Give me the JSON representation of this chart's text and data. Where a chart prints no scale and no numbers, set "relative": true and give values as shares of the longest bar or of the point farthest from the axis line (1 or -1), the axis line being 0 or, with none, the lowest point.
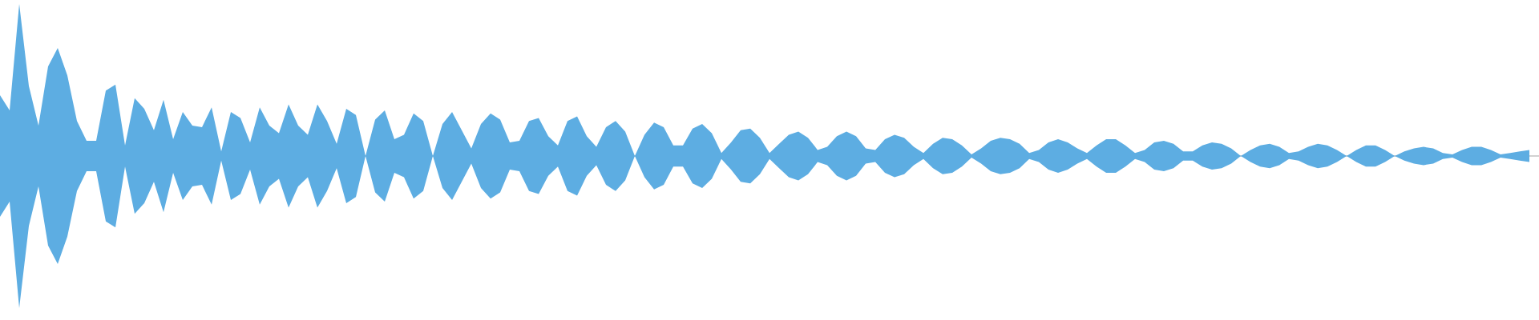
{
  "chart_data": {
    "type": "area",
    "relative": true,
    "categories": [
      null,
      null,
      null,
      null,
      null,
      null,
      null,
      null,
      null,
      null,
      null,
      null,
      null,
      null,
      null,
      null,
      null,
      null,
      null,
      null,
      null,
      null,
      null,
      null,
      null,
      null,
      null,
      null,
      null,
      null,
      null,
      null,
      null,
      null,
      null,
      null,
      null,
      null,
      null,
      null,
      null,
      null,
      null,
      null,
      null,
      null,
      null,
      null,
      null,
      null,
      null,
      null,
      null,
      null,
      null,
      null,
      null,
      null,
      null,
      null,
      null,
      null,
      null,
      null,
      null,
      null,
      null,
      null,
      null,
      null,
      null,
      null,
      null,
      null,
      null,
      null,
      null,
      null,
      null,
      null,
      null,
      null,
      null,
      null,
      null,
      null,
      null,
      null,
      null,
      null,
      null,
      null,
      null,
      null,
      null,
      null,
      null,
      null,
      null,
      null,
      null,
      null,
      null,
      null,
      null,
      null,
      null,
      null,
      null,
      null,
      null,
      null,
      null,
      null,
      null,
      null,
      null,
      null,
      null,
      null,
      null,
      null,
      null,
      null,
      null,
      null,
      null,
      null,
      null,
      null,
      null,
      null,
      null,
      null,
      null,
      null,
      null,
      null,
      null,
      null,
      null,
      null,
      null,
      null,
      null,
      null,
      null,
      null,
      null,
      null,
      null,
      null,
      null,
      null,
      null,
      null,
      null,
      null,
      null,
      null
    ],
    "series": [
      {
        "color": "#5dade2",
        "values": [
          0.4,
          0.3,
          1.0,
          0.46,
          0.2,
          0.59,
          0.71,
          0.53,
          0.23,
          0.1,
          0.1,
          0.43,
          0.47,
          0.07,
          0.38,
          0.31,
          0.17,
          0.37,
          0.11,
          0.29,
          0.2,
          0.19,
          0.32,
          0.03,
          0.29,
          0.25,
          0.09,
          0.32,
          0.2,
          0.15,
          0.34,
          0.2,
          0.14,
          0.34,
          0.23,
          0.08,
          0.31,
          0.27,
          0.0,
          0.24,
          0.3,
          0.11,
          0.14,
          0.28,
          0.23,
          0.0,
          0.21,
          0.29,
          0.17,
          0.05,
          0.21,
          0.28,
          0.24,
          0.09,
          0.1,
          0.23,
          0.25,
          0.13,
          0.07,
          0.23,
          0.26,
          0.13,
          0.06,
          0.19,
          0.23,
          0.16,
          0.0,
          0.14,
          0.22,
          0.19,
          0.07,
          0.07,
          0.18,
          0.21,
          0.15,
          0.02,
          0.09,
          0.17,
          0.18,
          0.12,
          0.02,
          0.08,
          0.14,
          0.16,
          0.12,
          0.04,
          0.06,
          0.13,
          0.16,
          0.13,
          0.05,
          0.04,
          0.11,
          0.14,
          0.12,
          0.06,
          0.02,
          0.08,
          0.12,
          0.11,
          0.07,
          0.01,
          0.05,
          0.1,
          0.12,
          0.11,
          0.08,
          0.02,
          0.04,
          0.09,
          0.11,
          0.09,
          0.05,
          0.02,
          0.07,
          0.11,
          0.11,
          0.07,
          0.02,
          0.04,
          0.09,
          0.1,
          0.08,
          0.03,
          0.03,
          0.07,
          0.09,
          0.08,
          0.05,
          0.0,
          0.04,
          0.07,
          0.08,
          0.06,
          0.02,
          0.03,
          0.06,
          0.08,
          0.07,
          0.04,
          0.0,
          0.04,
          0.07,
          0.07,
          0.04,
          0.0,
          0.03,
          0.05,
          0.06,
          0.05,
          0.02,
          0.01,
          0.04,
          0.06,
          0.06,
          0.04,
          0.01,
          0.02,
          0.03,
          0.04
        ]
      },
      {
        "color": "#5dade2",
        "values": [
          -0.4,
          -0.3,
          -1.0,
          -0.46,
          -0.2,
          -0.59,
          -0.71,
          -0.53,
          -0.23,
          -0.1,
          -0.1,
          -0.43,
          -0.47,
          -0.07,
          -0.38,
          -0.31,
          -0.17,
          -0.37,
          -0.11,
          -0.29,
          -0.2,
          -0.19,
          -0.32,
          -0.03,
          -0.29,
          -0.25,
          -0.09,
          -0.32,
          -0.2,
          -0.15,
          -0.34,
          -0.2,
          -0.14,
          -0.34,
          -0.23,
          -0.08,
          -0.31,
          -0.27,
          0.0,
          -0.24,
          -0.3,
          -0.11,
          -0.14,
          -0.28,
          -0.23,
          0.0,
          -0.21,
          -0.29,
          -0.17,
          -0.05,
          -0.21,
          -0.28,
          -0.24,
          -0.09,
          -0.1,
          -0.23,
          -0.25,
          -0.13,
          -0.07,
          -0.23,
          -0.26,
          -0.13,
          -0.06,
          -0.19,
          -0.23,
          -0.16,
          0.0,
          -0.14,
          -0.22,
          -0.19,
          -0.07,
          -0.07,
          -0.18,
          -0.21,
          -0.15,
          -0.02,
          -0.09,
          -0.17,
          -0.18,
          -0.12,
          -0.02,
          -0.08,
          -0.14,
          -0.16,
          -0.12,
          -0.04,
          -0.06,
          -0.13,
          -0.16,
          -0.13,
          -0.05,
          -0.04,
          -0.11,
          -0.14,
          -0.12,
          -0.06,
          -0.02,
          -0.08,
          -0.12,
          -0.11,
          -0.07,
          -0.01,
          -0.05,
          -0.1,
          -0.12,
          -0.11,
          -0.08,
          -0.02,
          -0.04,
          -0.09,
          -0.11,
          -0.09,
          -0.05,
          -0.02,
          -0.07,
          -0.11,
          -0.11,
          -0.07,
          -0.02,
          -0.04,
          -0.09,
          -0.1,
          -0.08,
          -0.03,
          -0.03,
          -0.07,
          -0.09,
          -0.08,
          -0.05,
          0.0,
          -0.04,
          -0.07,
          -0.08,
          -0.06,
          -0.02,
          -0.03,
          -0.06,
          -0.08,
          -0.07,
          -0.04,
          0.0,
          -0.04,
          -0.07,
          -0.07,
          -0.04,
          0.0,
          -0.03,
          -0.05,
          -0.06,
          -0.05,
          -0.02,
          -0.01,
          -0.04,
          -0.06,
          -0.06,
          -0.04,
          -0.01,
          -0.02,
          -0.03,
          -0.04
        ]
      }
    ]
  }
}
